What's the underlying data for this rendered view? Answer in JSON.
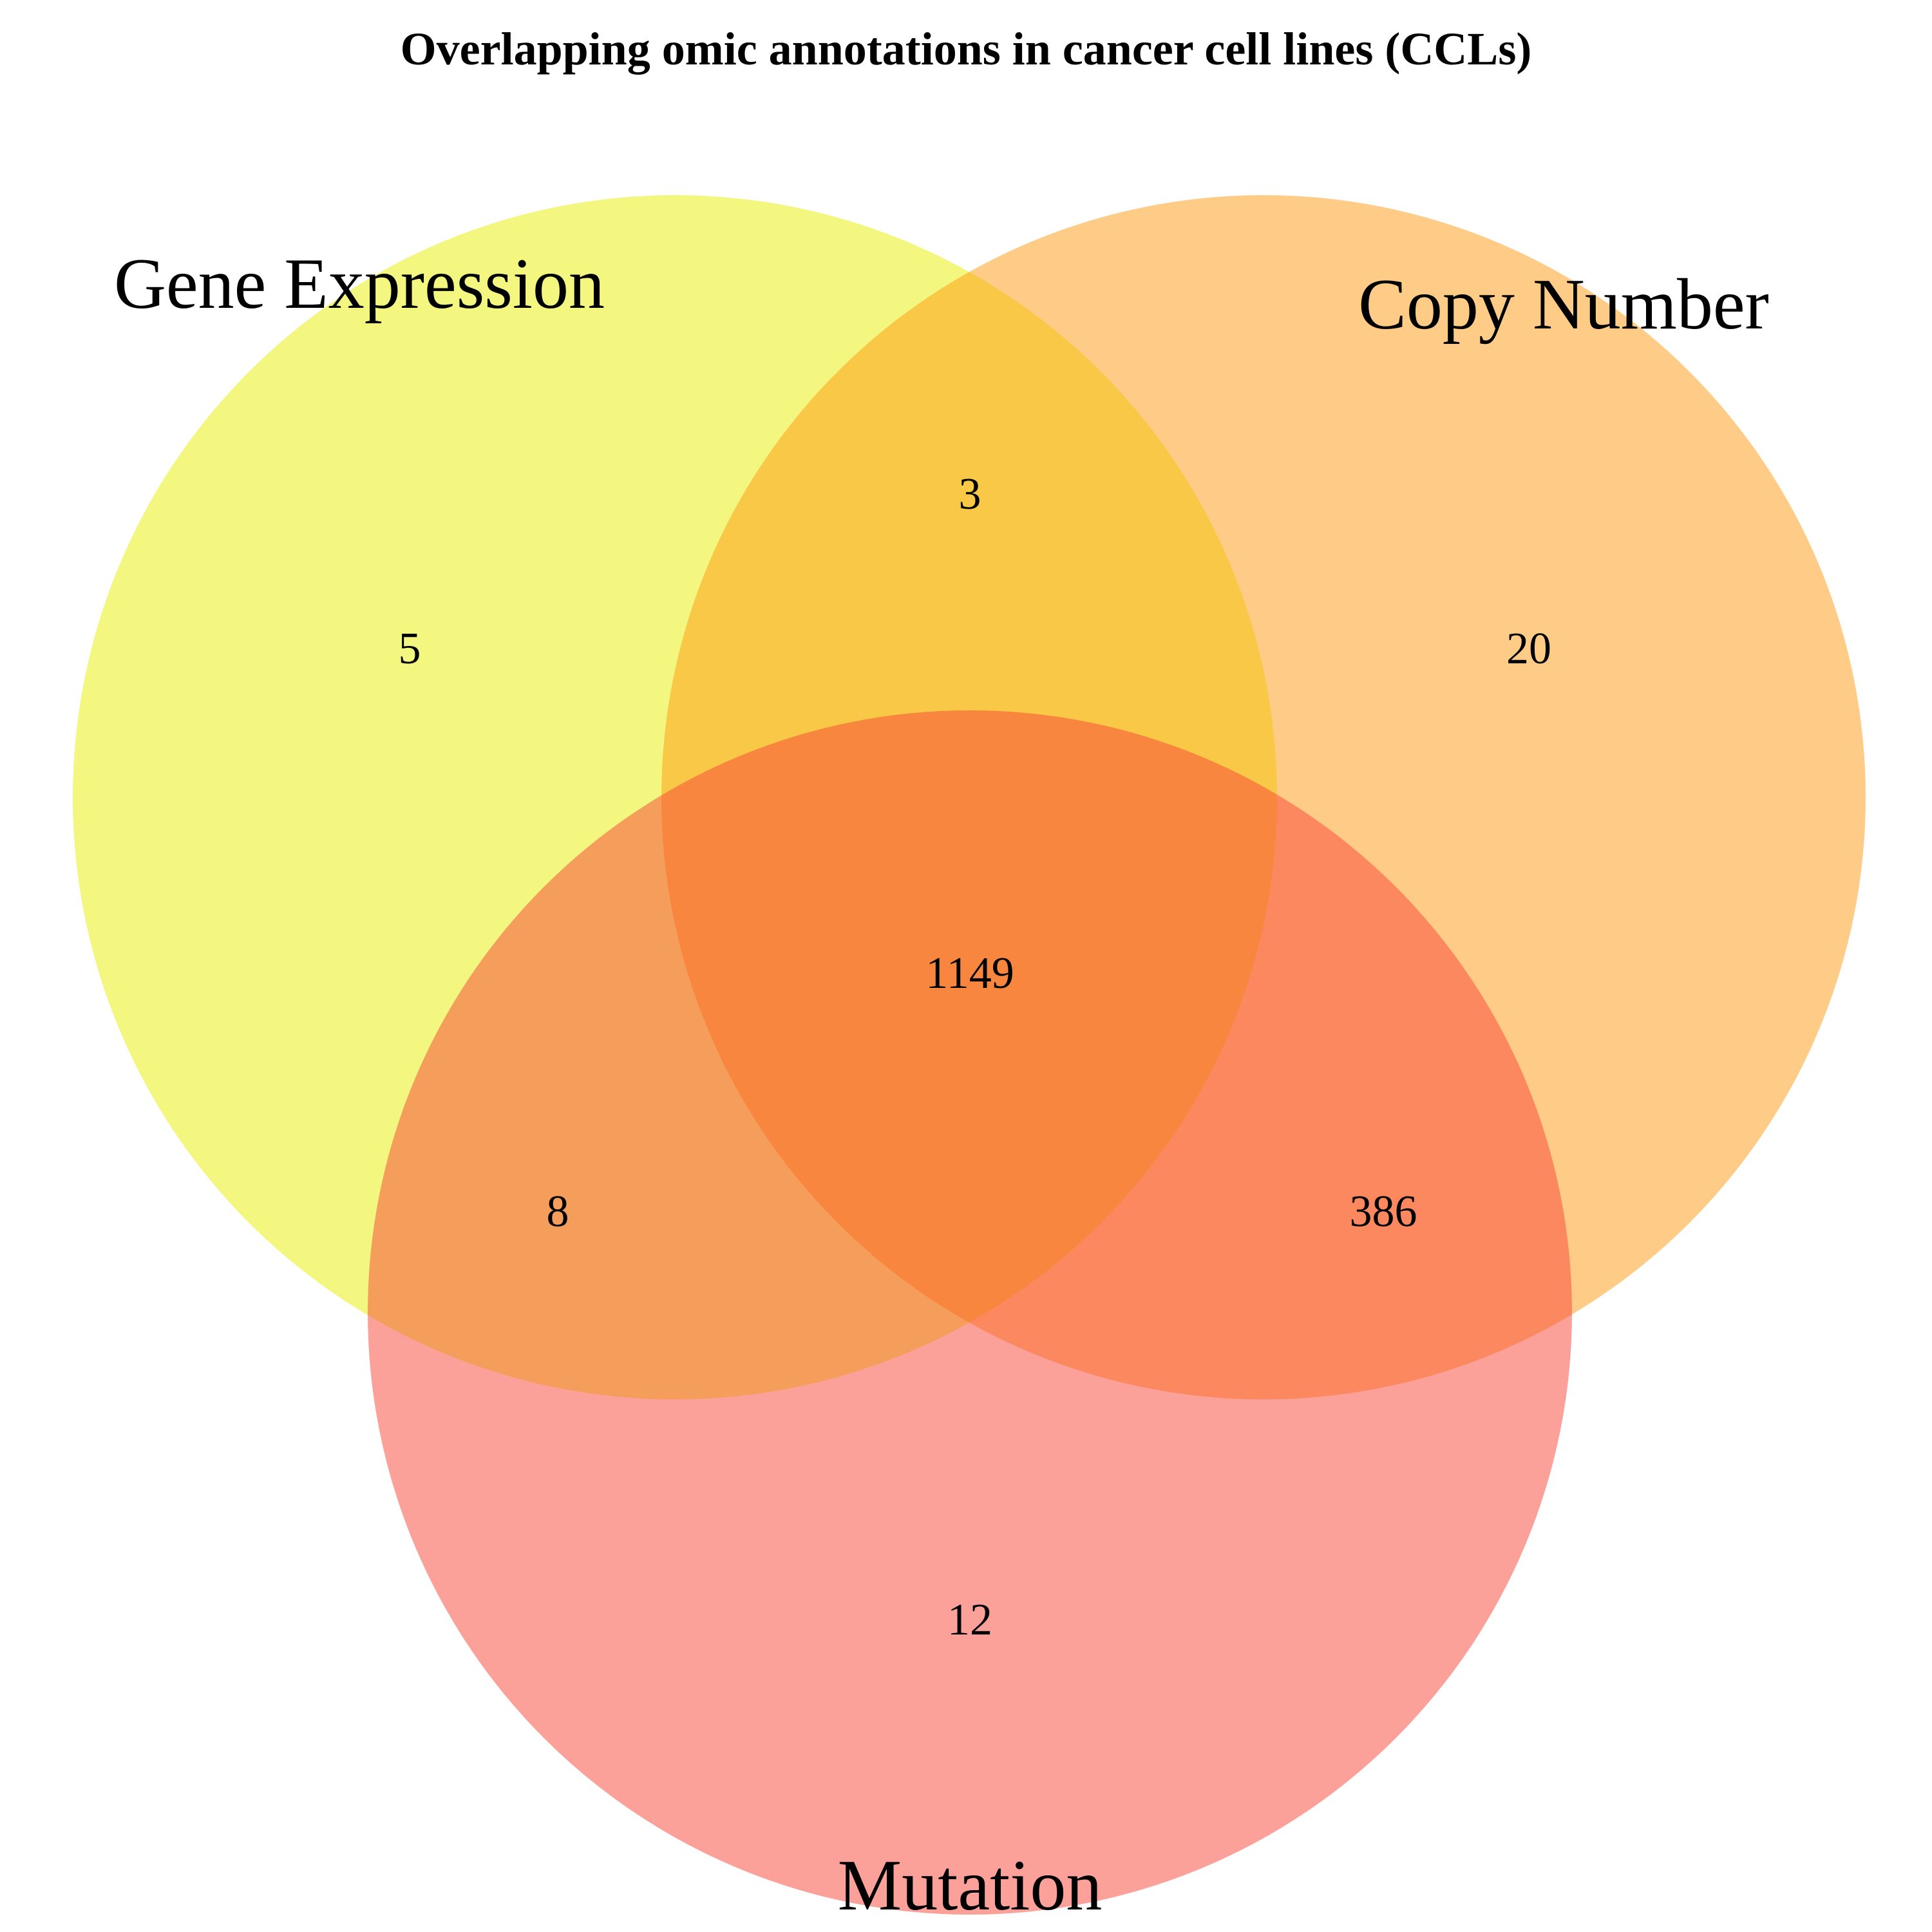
{
  "title": "Overlapping omic annotations in cancer cell lines (CCLs)",
  "sets": [
    {
      "key": "gene_expression",
      "name": "Gene Expression",
      "color": "#e8ed00"
    },
    {
      "key": "copy_number",
      "name": "Copy Number",
      "color": "#fd9a0d"
    },
    {
      "key": "mutation",
      "name": "Mutation",
      "color": "#f74436"
    }
  ],
  "regions": {
    "gene_expression_only": "5",
    "copy_number_only": "20",
    "mutation_only": "12",
    "gene_expression_and_copy_number": "3",
    "gene_expression_and_mutation": "8",
    "copy_number_and_mutation": "386",
    "all_three": "1149"
  }
}
